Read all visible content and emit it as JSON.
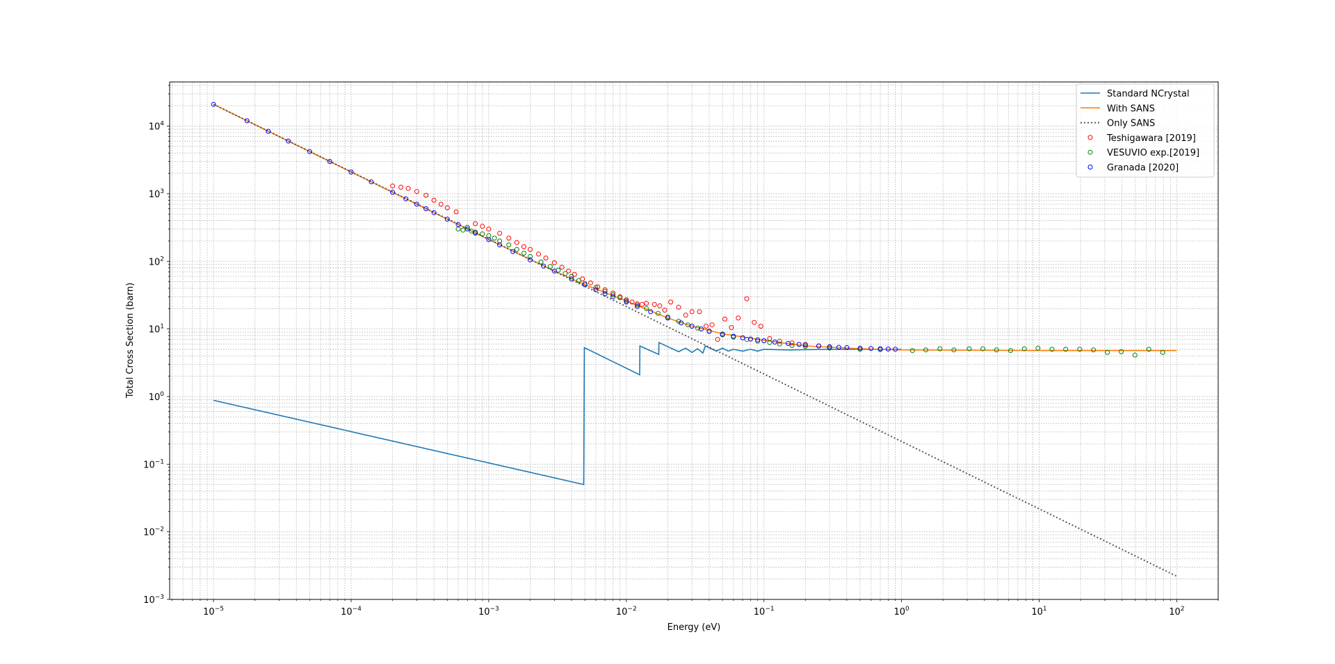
{
  "chart_data": {
    "type": "line",
    "title": "",
    "xlabel": "Energy (eV)",
    "ylabel": "Total Cross Section (barn)",
    "xscale": "log",
    "yscale": "log",
    "xlim": [
      4.8e-06,
      200
    ],
    "ylim": [
      0.001,
      45000
    ],
    "grid": "both-major-minor",
    "legend_position": "upper right",
    "x_ticks": [
      {
        "value": 1e-05,
        "mantissa": "10",
        "exp": "−5"
      },
      {
        "value": 0.0001,
        "mantissa": "10",
        "exp": "−4"
      },
      {
        "value": 0.001,
        "mantissa": "10",
        "exp": "−3"
      },
      {
        "value": 0.01,
        "mantissa": "10",
        "exp": "−2"
      },
      {
        "value": 0.1,
        "mantissa": "10",
        "exp": "−1"
      },
      {
        "value": 1,
        "mantissa": "10",
        "exp": "0"
      },
      {
        "value": 10,
        "mantissa": "10",
        "exp": "1"
      },
      {
        "value": 100,
        "mantissa": "10",
        "exp": "2"
      }
    ],
    "y_ticks": [
      {
        "value": 0.001,
        "mantissa": "10",
        "exp": "−3"
      },
      {
        "value": 0.01,
        "mantissa": "10",
        "exp": "−2"
      },
      {
        "value": 0.1,
        "mantissa": "10",
        "exp": "−1"
      },
      {
        "value": 1,
        "mantissa": "10",
        "exp": "0"
      },
      {
        "value": 10,
        "mantissa": "10",
        "exp": "1"
      },
      {
        "value": 100,
        "mantissa": "10",
        "exp": "2"
      },
      {
        "value": 1000,
        "mantissa": "10",
        "exp": "3"
      },
      {
        "value": 10000,
        "mantissa": "10",
        "exp": "4"
      }
    ],
    "series": [
      {
        "name": "Standard NCrystal",
        "kind": "line",
        "color": "#1f77b4",
        "style": "solid",
        "points": [
          [
            1e-05,
            0.88
          ],
          [
            0.0049,
            0.05
          ],
          [
            0.00495,
            5.3
          ],
          [
            0.0125,
            2.1
          ],
          [
            0.01255,
            5.6
          ],
          [
            0.0172,
            4.2
          ],
          [
            0.01725,
            6.3
          ],
          [
            0.024,
            4.6
          ],
          [
            0.027,
            5.2
          ],
          [
            0.03,
            4.5
          ],
          [
            0.033,
            5.1
          ],
          [
            0.036,
            4.4
          ],
          [
            0.0375,
            5.6
          ],
          [
            0.045,
            4.7
          ],
          [
            0.05,
            5.2
          ],
          [
            0.055,
            4.7
          ],
          [
            0.06,
            5.0
          ],
          [
            0.07,
            4.7
          ],
          [
            0.08,
            5.0
          ],
          [
            0.09,
            4.7
          ],
          [
            0.1,
            5.0
          ],
          [
            0.15,
            4.9
          ],
          [
            0.3,
            5.0
          ],
          [
            1,
            5.0
          ]
        ]
      },
      {
        "name": "With SANS",
        "kind": "line",
        "color": "#ff7f0e",
        "style": "solid",
        "points": [
          [
            1e-05,
            21000
          ],
          [
            0.0001,
            2100
          ],
          [
            0.0003,
            700
          ],
          [
            0.001,
            210
          ],
          [
            0.003,
            72
          ],
          [
            0.005,
            45
          ],
          [
            0.01,
            26
          ],
          [
            0.02,
            14.5
          ],
          [
            0.03,
            11
          ],
          [
            0.05,
            8.5
          ],
          [
            0.1,
            6.8
          ],
          [
            0.2,
            5.6
          ],
          [
            0.5,
            5.1
          ],
          [
            1,
            4.9
          ],
          [
            10,
            4.8
          ],
          [
            100,
            4.8
          ]
        ]
      },
      {
        "name": "Only SANS",
        "kind": "line",
        "color": "#555555",
        "style": "dotted",
        "points": [
          [
            1e-05,
            21000
          ],
          [
            100,
            0.0022
          ]
        ]
      },
      {
        "name": "Teshigawara [2019]",
        "kind": "scatter",
        "color": "#ff0000",
        "points": [
          [
            0.0002,
            1300
          ],
          [
            0.00023,
            1250
          ],
          [
            0.00026,
            1200
          ],
          [
            0.0003,
            1080
          ],
          [
            0.00035,
            950
          ],
          [
            0.0004,
            800
          ],
          [
            0.00045,
            700
          ],
          [
            0.0005,
            620
          ],
          [
            0.00058,
            540
          ],
          [
            0.0008,
            360
          ],
          [
            0.0009,
            330
          ],
          [
            0.001,
            300
          ],
          [
            0.0012,
            260
          ],
          [
            0.0014,
            220
          ],
          [
            0.0016,
            190
          ],
          [
            0.0018,
            165
          ],
          [
            0.002,
            150
          ],
          [
            0.0023,
            128
          ],
          [
            0.0026,
            112
          ],
          [
            0.003,
            95
          ],
          [
            0.0034,
            82
          ],
          [
            0.0038,
            72
          ],
          [
            0.0042,
            64
          ],
          [
            0.0048,
            55
          ],
          [
            0.0055,
            48
          ],
          [
            0.0062,
            42
          ],
          [
            0.007,
            38
          ],
          [
            0.008,
            34
          ],
          [
            0.009,
            30
          ],
          [
            0.01,
            27
          ],
          [
            0.011,
            25
          ],
          [
            0.012,
            23.5
          ],
          [
            0.013,
            23
          ],
          [
            0.014,
            24
          ],
          [
            0.016,
            23
          ],
          [
            0.0175,
            22
          ],
          [
            0.019,
            19
          ],
          [
            0.021,
            25
          ],
          [
            0.024,
            21
          ],
          [
            0.027,
            16
          ],
          [
            0.03,
            18
          ],
          [
            0.034,
            18
          ],
          [
            0.038,
            11
          ],
          [
            0.042,
            11.5
          ],
          [
            0.046,
            7
          ],
          [
            0.052,
            14
          ],
          [
            0.058,
            10.5
          ],
          [
            0.065,
            14.5
          ],
          [
            0.075,
            28
          ],
          [
            0.085,
            12.5
          ],
          [
            0.095,
            11
          ],
          [
            0.11,
            7.2
          ],
          [
            0.13,
            6.6
          ],
          [
            0.16,
            6.2
          ],
          [
            0.2,
            5.9
          ],
          [
            0.25,
            5.6
          ],
          [
            0.3,
            5.4
          ]
        ]
      },
      {
        "name": "VESUVIO exp.[2019]",
        "kind": "scatter",
        "color": "#008000",
        "points": [
          [
            0.0006,
            300
          ],
          [
            0.00065,
            290
          ],
          [
            0.0007,
            320
          ],
          [
            0.00075,
            280
          ],
          [
            0.0008,
            270
          ],
          [
            0.0009,
            255
          ],
          [
            0.001,
            240
          ],
          [
            0.0011,
            220
          ],
          [
            0.0012,
            200
          ],
          [
            0.0014,
            175
          ],
          [
            0.0016,
            150
          ],
          [
            0.0018,
            132
          ],
          [
            0.002,
            118
          ],
          [
            0.0024,
            98
          ],
          [
            0.0028,
            84
          ],
          [
            0.0032,
            74
          ],
          [
            0.0036,
            66
          ],
          [
            0.004,
            60
          ],
          [
            0.0045,
            52
          ],
          [
            0.005,
            47
          ],
          [
            0.006,
            41
          ],
          [
            0.007,
            36
          ],
          [
            0.008,
            32
          ],
          [
            0.009,
            29
          ],
          [
            0.01,
            26
          ],
          [
            0.012,
            22.5
          ],
          [
            0.014,
            20
          ],
          [
            0.017,
            17
          ],
          [
            0.02,
            15
          ],
          [
            0.024,
            13
          ],
          [
            0.028,
            11.5
          ],
          [
            0.033,
            10.3
          ],
          [
            0.04,
            9.2
          ],
          [
            0.05,
            8.2
          ],
          [
            0.06,
            7.6
          ],
          [
            0.075,
            7.0
          ],
          [
            0.09,
            6.6
          ],
          [
            0.11,
            6.3
          ],
          [
            0.13,
            6.0
          ],
          [
            0.16,
            5.7
          ],
          [
            0.2,
            5.5
          ],
          [
            0.3,
            5.2
          ],
          [
            0.5,
            5.0
          ],
          [
            0.7,
            4.95
          ],
          [
            1.2,
            4.8
          ],
          [
            1.5,
            4.9
          ],
          [
            1.9,
            5.1
          ],
          [
            2.4,
            4.9
          ],
          [
            3.1,
            5.1
          ],
          [
            3.9,
            5.1
          ],
          [
            4.9,
            4.9
          ],
          [
            6.2,
            4.8
          ],
          [
            7.8,
            5.1
          ],
          [
            9.8,
            5.2
          ],
          [
            12.4,
            5.0
          ],
          [
            15.6,
            5.0
          ],
          [
            19.7,
            5.0
          ],
          [
            24.8,
            4.9
          ],
          [
            31.3,
            4.5
          ],
          [
            39.5,
            4.6
          ],
          [
            49.7,
            4.1
          ],
          [
            62.7,
            5.0
          ],
          [
            79,
            4.5
          ]
        ]
      },
      {
        "name": "Granada [2020]",
        "kind": "scatter",
        "color": "#0000ff",
        "points": [
          [
            1e-05,
            21000
          ],
          [
            1.75e-05,
            12000
          ],
          [
            2.5e-05,
            8400
          ],
          [
            3.5e-05,
            6000
          ],
          [
            5e-05,
            4200
          ],
          [
            7e-05,
            3000
          ],
          [
            0.0001,
            2100
          ],
          [
            0.00014,
            1500
          ],
          [
            0.0002,
            1050
          ],
          [
            0.00025,
            840
          ],
          [
            0.0003,
            700
          ],
          [
            0.00035,
            600
          ],
          [
            0.0004,
            525
          ],
          [
            0.0005,
            420
          ],
          [
            0.0006,
            350
          ],
          [
            0.0007,
            300
          ],
          [
            0.0008,
            262
          ],
          [
            0.001,
            210
          ],
          [
            0.0012,
            175
          ],
          [
            0.0015,
            140
          ],
          [
            0.002,
            105
          ],
          [
            0.0025,
            85
          ],
          [
            0.003,
            72
          ],
          [
            0.004,
            55
          ],
          [
            0.005,
            45
          ],
          [
            0.006,
            38
          ],
          [
            0.007,
            33
          ],
          [
            0.008,
            30
          ],
          [
            0.01,
            25
          ],
          [
            0.012,
            21.5
          ],
          [
            0.015,
            18
          ],
          [
            0.02,
            14.5
          ],
          [
            0.025,
            12.3
          ],
          [
            0.03,
            11
          ],
          [
            0.035,
            10
          ],
          [
            0.04,
            9.3
          ],
          [
            0.05,
            8.4
          ],
          [
            0.06,
            7.8
          ],
          [
            0.07,
            7.4
          ],
          [
            0.08,
            7.1
          ],
          [
            0.09,
            6.9
          ],
          [
            0.1,
            6.7
          ],
          [
            0.12,
            6.4
          ],
          [
            0.15,
            6.1
          ],
          [
            0.18,
            5.9
          ],
          [
            0.2,
            5.8
          ],
          [
            0.25,
            5.6
          ],
          [
            0.3,
            5.45
          ],
          [
            0.35,
            5.35
          ],
          [
            0.4,
            5.3
          ],
          [
            0.5,
            5.2
          ],
          [
            0.6,
            5.15
          ],
          [
            0.7,
            5.1
          ],
          [
            0.8,
            5.05
          ],
          [
            0.9,
            5.02
          ]
        ]
      }
    ]
  }
}
